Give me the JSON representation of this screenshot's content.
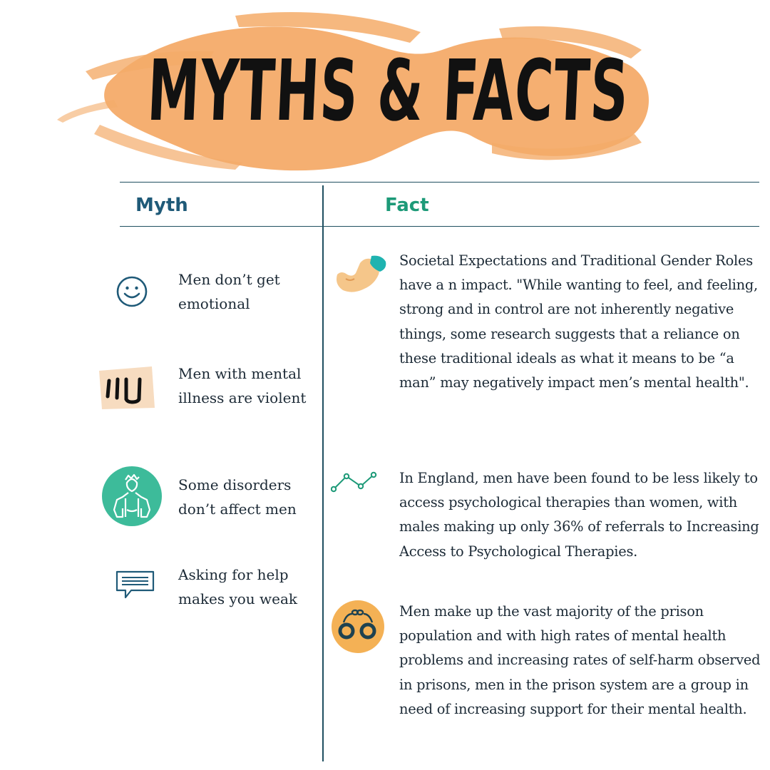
{
  "title": "MYTHS & FACTS",
  "headers": {
    "myth": "Myth",
    "fact": "Fact"
  },
  "myths": [
    {
      "text": "Men don’t get emotional",
      "icon": "smiley-face-icon"
    },
    {
      "text": "Men with mental illness are violent",
      "icon": "fist-icon"
    },
    {
      "text": "Some disorders don’t affect men",
      "icon": "muscular-man-icon"
    },
    {
      "text": "Asking for help makes you weak",
      "icon": "speech-bubble-icon"
    }
  ],
  "facts": [
    {
      "text": "Societal Expectations and Traditional Gender Roles have a n impact. \"While wanting to feel, and feeling, strong and in control are not inherently negative things, some research suggests that a reliance on these traditional ideals as what it means to be “a man” may negatively impact men’s mental health\".",
      "icon": "flexed-bicep-icon"
    },
    {
      "text": "In England, men have been found to be less likely to access psychological therapies than women, with males making up only 36% of referrals to Increasing Access to Psychological Therapies.",
      "icon": "line-graph-icon"
    },
    {
      "text": "Men make up the vast majority of the prison population and with high rates of mental health problems and increasing rates of self-harm observed in prisons, men in the prison system are a group in need of increasing support for their mental health.",
      "icon": "handcuffs-icon"
    }
  ],
  "colors": {
    "brush": "#f4ab69",
    "myth_header": "#1f5a78",
    "fact_header": "#1d9a78",
    "lines": "#1f4f60",
    "body_text": "#1c2a36",
    "teal": "#3dbb9a",
    "orange_circle": "#f4b155"
  }
}
